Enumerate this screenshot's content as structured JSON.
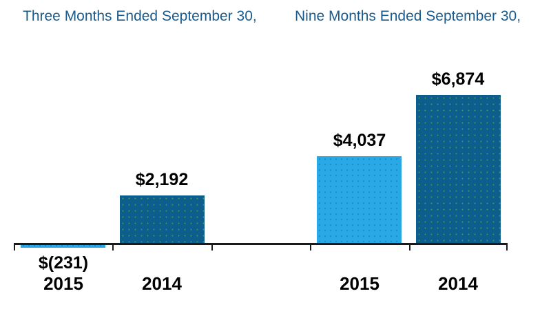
{
  "titles": {
    "three_months": "Three Months Ended September 30,",
    "nine_months": "Nine Months Ended September 30,"
  },
  "colors": {
    "title_text": "#1A5B8C",
    "bar_dark": "#0D5E8C",
    "bar_dark_dot": "#3F9E55",
    "bar_light": "#29A8E6",
    "bar_light_dot": "#1E7FC0",
    "axis": "#1A1A1A",
    "label_text": "#000000"
  },
  "chart_data": {
    "type": "bar",
    "title": "",
    "xlabel": "",
    "ylabel": "",
    "grid": false,
    "legend": false,
    "baseline": 0,
    "ylim": [
      -300,
      7200
    ],
    "groups": [
      {
        "label": "Three Months Ended September 30,",
        "categories": [
          "2015",
          "2014"
        ],
        "values": [
          -231,
          2192
        ],
        "value_labels": [
          "$(231)",
          "$2,192"
        ],
        "bar_styles": [
          "light",
          "dark"
        ]
      },
      {
        "label": "Nine Months Ended September 30,",
        "categories": [
          "2015",
          "2014"
        ],
        "values": [
          4037,
          6874
        ],
        "value_labels": [
          "$4,037",
          "$6,874"
        ],
        "bar_styles": [
          "light",
          "dark"
        ]
      }
    ]
  }
}
